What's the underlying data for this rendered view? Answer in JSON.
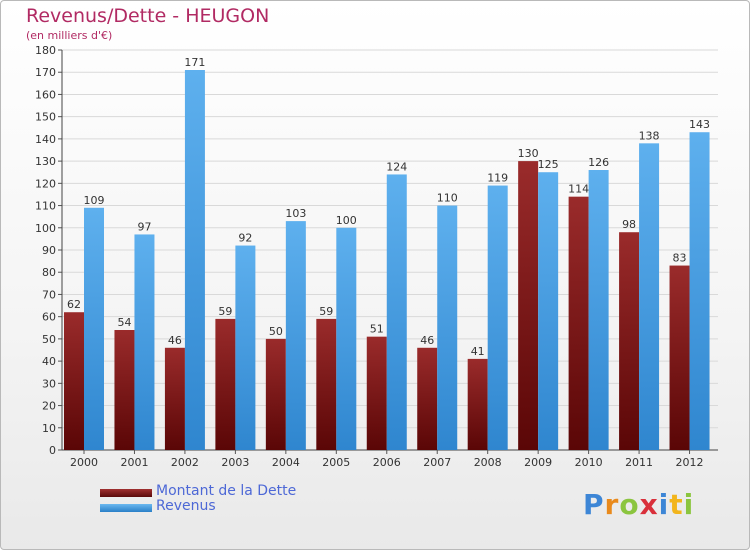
{
  "chart_data": {
    "type": "bar",
    "title": "Revenus/Dette - HEUGON",
    "subtitle": "(en milliers d'€)",
    "categories": [
      "2000",
      "2001",
      "2002",
      "2003",
      "2004",
      "2005",
      "2006",
      "2007",
      "2008",
      "2009",
      "2010",
      "2011",
      "2012"
    ],
    "series": [
      {
        "name": "Montant de la Dette",
        "color": "#7a1d1d",
        "values": [
          62,
          54,
          46,
          59,
          50,
          59,
          51,
          46,
          41,
          130,
          114,
          98,
          83
        ]
      },
      {
        "name": "Revenus",
        "color": "#4aa3e6",
        "values": [
          109,
          97,
          171,
          92,
          103,
          100,
          124,
          110,
          119,
          125,
          126,
          138,
          143
        ]
      }
    ],
    "ylim": [
      0,
      180
    ],
    "ytick_step": 10,
    "grid": true,
    "legend_position": "bottom-left"
  },
  "logo": {
    "text": "Proxiti"
  }
}
